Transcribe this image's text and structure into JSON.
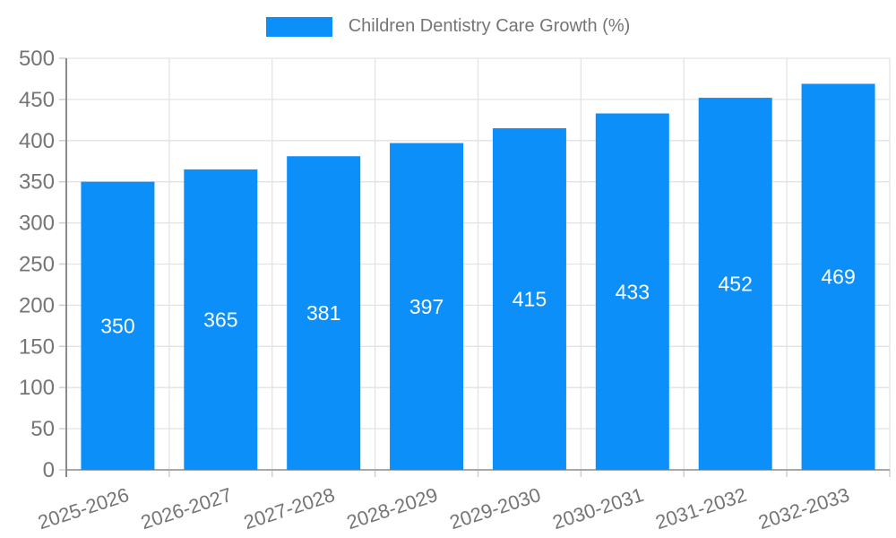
{
  "legend": {
    "label": "Children Dentistry Care Growth (%)"
  },
  "colors": {
    "bar": "#0d8ff9",
    "bar_label": "#ffffff",
    "grid": "#e3e3e3",
    "tick": "#cfcfcf",
    "baseline": "#a8a8a8",
    "y_axis_line": "#8a8a8a",
    "axis_text": "#757575",
    "background": "#ffffff"
  },
  "chart_data": {
    "type": "bar",
    "title": "",
    "legend_entries": [
      "Children Dentistry Care Growth (%)"
    ],
    "legend_position": "top",
    "categories": [
      "2025-2026",
      "2026-2027",
      "2027-2028",
      "2028-2029",
      "2029-2030",
      "2030-2031",
      "2031-2032",
      "2032-2033"
    ],
    "values": [
      350,
      365,
      381,
      397,
      415,
      433,
      452,
      469
    ],
    "xlabel": "",
    "ylabel": "",
    "ylim": [
      0,
      500
    ],
    "ytick_step": 50,
    "grid": true,
    "value_label_position": "inside-center",
    "x_label_rotation_deg": -18
  }
}
